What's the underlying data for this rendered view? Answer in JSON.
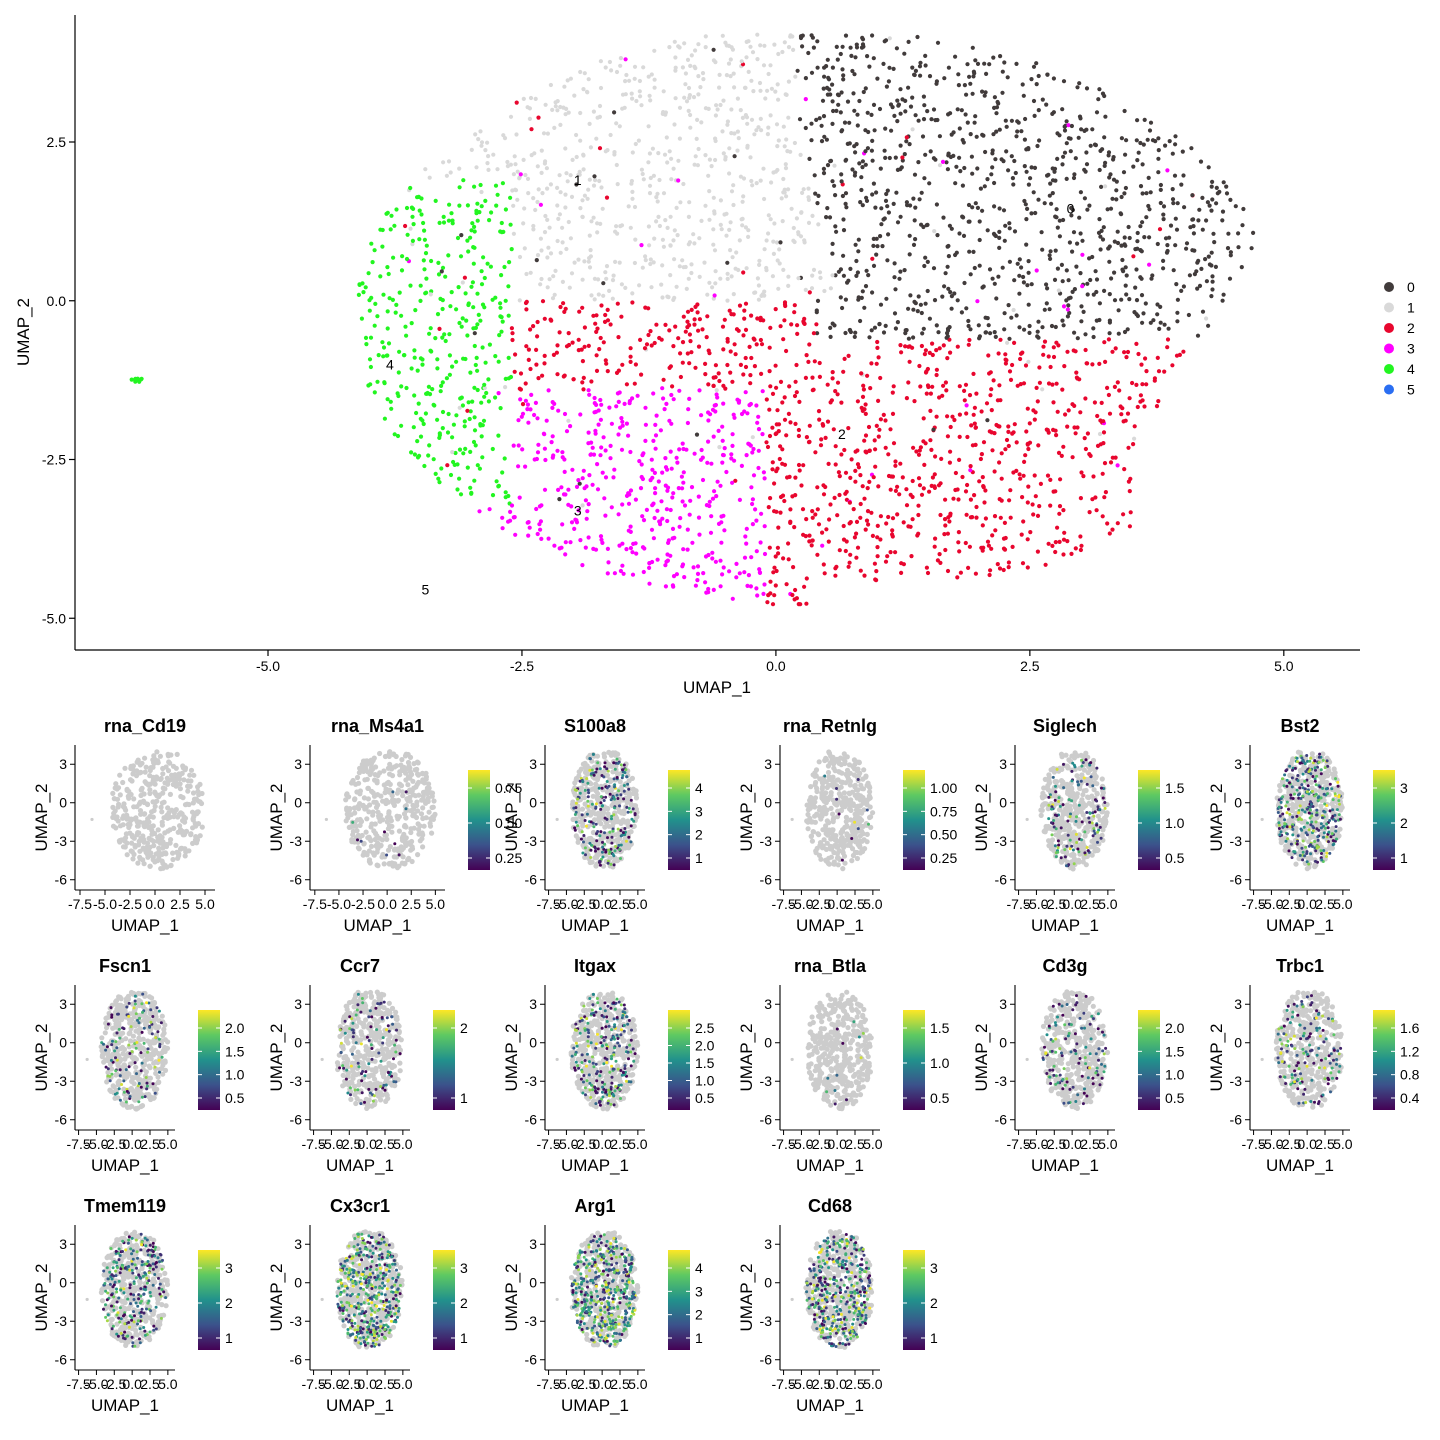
{
  "chart_data": [
    {
      "type": "scatter",
      "xlabel": "UMAP_1",
      "ylabel": "UMAP_2",
      "xlim": [
        -6.9,
        5.75
      ],
      "ylim": [
        -5.5,
        4.5
      ],
      "xticks": [
        -5.0,
        -2.5,
        0.0,
        2.5,
        5.0
      ],
      "xtick_labels": [
        "-5.0",
        "-2.5",
        "0.0",
        "2.5",
        "5.0"
      ],
      "yticks": [
        -5.0,
        -2.5,
        0.0,
        2.5
      ],
      "ytick_labels": [
        "-5.0",
        "-2.5",
        "0.0",
        "2.5"
      ],
      "legend_position": "right",
      "clusters": [
        {
          "label": "0",
          "color": "#413b3b",
          "center": [
            2.9,
            1.5
          ],
          "label_pos": [
            2.9,
            1.45
          ]
        },
        {
          "label": "1",
          "color": "#d9d9d9",
          "center": [
            -2.0,
            2.0
          ],
          "label_pos": [
            -1.95,
            1.9
          ]
        },
        {
          "label": "2",
          "color": "#e8062e",
          "center": [
            0.7,
            -1.9
          ],
          "label_pos": [
            0.65,
            -2.1
          ]
        },
        {
          "label": "3",
          "color": "#ff00ff",
          "center": [
            -1.9,
            -3.3
          ],
          "label_pos": [
            -1.95,
            -3.3
          ]
        },
        {
          "label": "4",
          "color": "#22f520",
          "center": [
            -4.0,
            -0.9
          ],
          "label_pos": [
            -3.8,
            -1.0
          ]
        },
        {
          "label": "5",
          "color": "#2a6ef2",
          "center": [
            -3.45,
            -4.55
          ],
          "label_pos": [
            -3.45,
            -4.55
          ]
        }
      ]
    },
    {
      "type": "feature_plots",
      "xlabel": "UMAP_1",
      "ylabel": "UMAP_2",
      "panel_xtick_labels": [
        "-7.5",
        "-5.0",
        "-2.5",
        "0.0",
        "2.5",
        "5.0"
      ],
      "panel_ytick_labels": [
        "3",
        "0",
        "-3",
        "-6"
      ],
      "panels": [
        {
          "title": "rna_Cd19",
          "colorbar": [],
          "level": 0.0
        },
        {
          "title": "rna_Ms4a1",
          "colorbar": [
            "0.75",
            "0.50",
            "0.25"
          ],
          "level": 0.02
        },
        {
          "title": "S100a8",
          "colorbar": [
            "4",
            "3",
            "2",
            "1"
          ],
          "level": 0.35
        },
        {
          "title": "rna_Retnlg",
          "colorbar": [
            "1.00",
            "0.75",
            "0.50",
            "0.25"
          ],
          "level": 0.02
        },
        {
          "title": "Siglech",
          "colorbar": [
            "1.5",
            "1.0",
            "0.5"
          ],
          "level": 0.25
        },
        {
          "title": "Bst2",
          "colorbar": [
            "3",
            "2",
            "1"
          ],
          "level": 0.55
        },
        {
          "title": "Fscn1",
          "colorbar": [
            "2.0",
            "1.5",
            "1.0",
            "0.5"
          ],
          "level": 0.22
        },
        {
          "title": "Ccr7",
          "colorbar": [
            "2",
            "1"
          ],
          "level": 0.18
        },
        {
          "title": "Itgax",
          "colorbar": [
            "2.5",
            "2.0",
            "1.5",
            "1.0",
            "0.5"
          ],
          "level": 0.4
        },
        {
          "title": "rna_Btla",
          "colorbar": [
            "1.5",
            "1.0",
            "0.5"
          ],
          "level": 0.02
        },
        {
          "title": "Cd3g",
          "colorbar": [
            "2.0",
            "1.5",
            "1.0",
            "0.5"
          ],
          "level": 0.22
        },
        {
          "title": "Trbc1",
          "colorbar": [
            "1.6",
            "1.2",
            "0.8",
            "0.4"
          ],
          "level": 0.28
        },
        {
          "title": "Tmem119",
          "colorbar": [
            "3",
            "2",
            "1"
          ],
          "level": 0.45
        },
        {
          "title": "Cx3cr1",
          "colorbar": [
            "3",
            "2",
            "1"
          ],
          "level": 0.75
        },
        {
          "title": "Arg1",
          "colorbar": [
            "4",
            "3",
            "2",
            "1"
          ],
          "level": 0.8
        },
        {
          "title": "Cd68",
          "colorbar": [
            "3",
            "2",
            "1"
          ],
          "level": 0.7
        }
      ]
    }
  ]
}
